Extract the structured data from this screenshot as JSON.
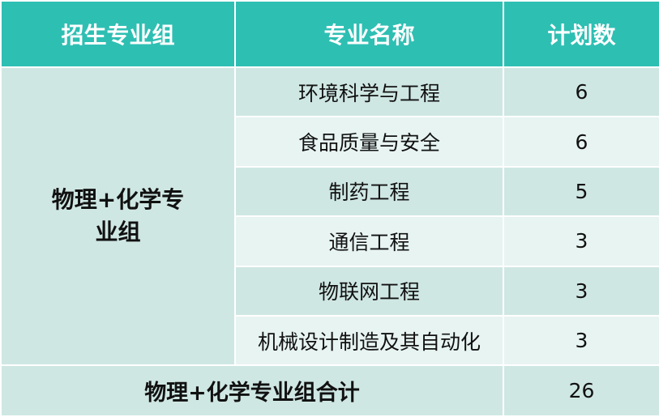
{
  "table": {
    "header": [
      "招生专业组",
      "专业名称",
      "计划数"
    ],
    "group": "物理+化学专业组",
    "rows": [
      [
        "环境科学与工程",
        6
      ],
      [
        "食品质量与安全",
        6
      ],
      [
        "制药工程",
        5
      ],
      [
        "通信工程",
        3
      ],
      [
        "物联网工程",
        3
      ],
      [
        "机械设计制造及其自动化",
        3
      ]
    ],
    "total": {
      "label": "物理+化学专业组合计",
      "value": 26
    }
  }
}
